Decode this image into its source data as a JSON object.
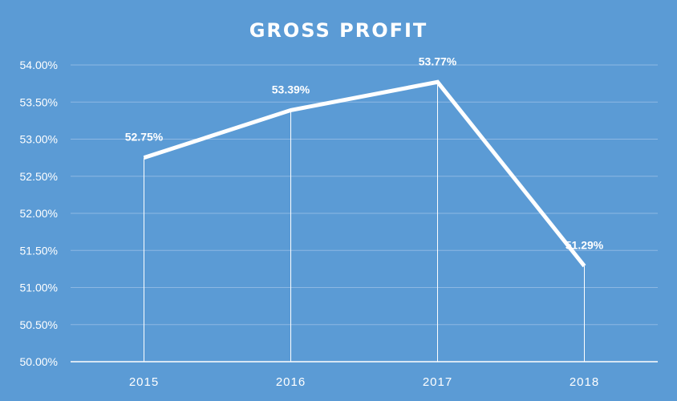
{
  "chart_data": {
    "type": "line",
    "title": "GROSS PROFIT",
    "categories": [
      "2015",
      "2016",
      "2017",
      "2018"
    ],
    "values": [
      52.75,
      53.39,
      53.77,
      51.29
    ],
    "data_labels": [
      "52.75%",
      "53.39%",
      "53.77%",
      "51.29%"
    ],
    "yticks": [
      "50.00%",
      "50.50%",
      "51.00%",
      "51.50%",
      "52.00%",
      "52.50%",
      "53.00%",
      "53.50%",
      "54.00%"
    ],
    "ylim": [
      50,
      54
    ],
    "ystep": 0.5,
    "grid": true,
    "legend": "none",
    "drop_lines": true
  },
  "colors": {
    "background": "#5b9bd5",
    "series": "#ffffff",
    "gridline": "#8db8e3",
    "text": "#ffffff"
  }
}
